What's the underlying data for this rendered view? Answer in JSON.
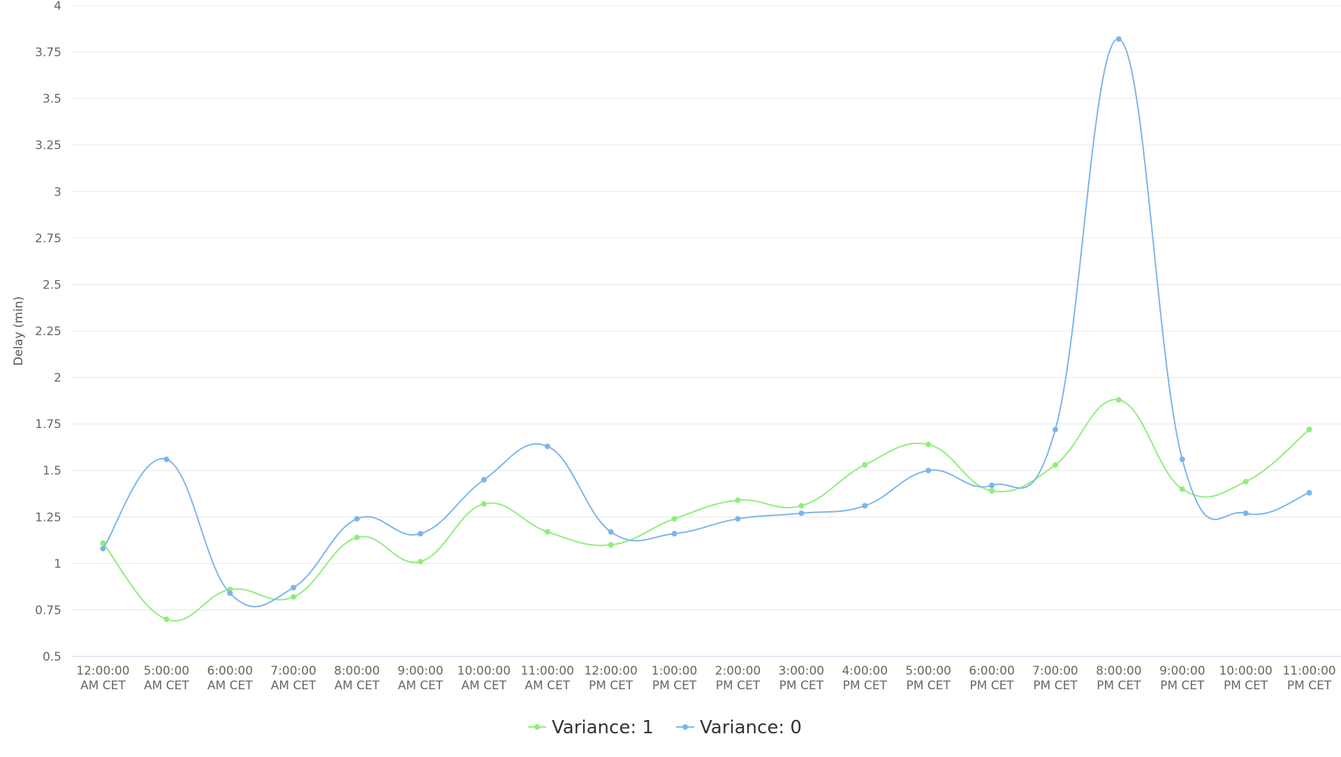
{
  "chart_data": {
    "type": "line",
    "categories": [
      [
        "12:00:00",
        "AM CET"
      ],
      [
        "5:00:00",
        "AM CET"
      ],
      [
        "6:00:00",
        "AM CET"
      ],
      [
        "7:00:00",
        "AM CET"
      ],
      [
        "8:00:00",
        "AM CET"
      ],
      [
        "9:00:00",
        "AM CET"
      ],
      [
        "10:00:00",
        "AM CET"
      ],
      [
        "11:00:00",
        "AM CET"
      ],
      [
        "12:00:00",
        "PM CET"
      ],
      [
        "1:00:00",
        "PM CET"
      ],
      [
        "2:00:00",
        "PM CET"
      ],
      [
        "3:00:00",
        "PM CET"
      ],
      [
        "4:00:00",
        "PM CET"
      ],
      [
        "5:00:00",
        "PM CET"
      ],
      [
        "6:00:00",
        "PM CET"
      ],
      [
        "7:00:00",
        "PM CET"
      ],
      [
        "8:00:00",
        "PM CET"
      ],
      [
        "9:00:00",
        "PM CET"
      ],
      [
        "10:00:00",
        "PM CET"
      ],
      [
        "11:00:00",
        "PM CET"
      ]
    ],
    "ylabel": "Delay (min)",
    "ylim": [
      0.5,
      4
    ],
    "yticks": [
      "0.5",
      "0.75",
      "1",
      "1.25",
      "1.5",
      "1.75",
      "2",
      "2.25",
      "2.5",
      "2.75",
      "3",
      "3.25",
      "3.5",
      "3.75",
      "4"
    ],
    "grid": true,
    "smooth": true,
    "legend_position": "bottom-center",
    "series": [
      {
        "name": "Variance: 1",
        "color": "#90ed7d",
        "values": [
          1.11,
          0.7,
          0.86,
          0.82,
          1.14,
          1.01,
          1.32,
          1.17,
          1.1,
          1.24,
          1.34,
          1.31,
          1.53,
          1.64,
          1.39,
          1.53,
          1.88,
          1.4,
          1.44,
          1.72
        ]
      },
      {
        "name": "Variance: 0",
        "color": "#7cb5ec",
        "values": [
          1.08,
          1.56,
          0.84,
          0.87,
          1.24,
          1.16,
          1.45,
          1.63,
          1.17,
          1.16,
          1.24,
          1.27,
          1.31,
          1.5,
          1.42,
          1.72,
          3.82,
          1.56,
          1.27,
          1.38
        ]
      }
    ]
  }
}
